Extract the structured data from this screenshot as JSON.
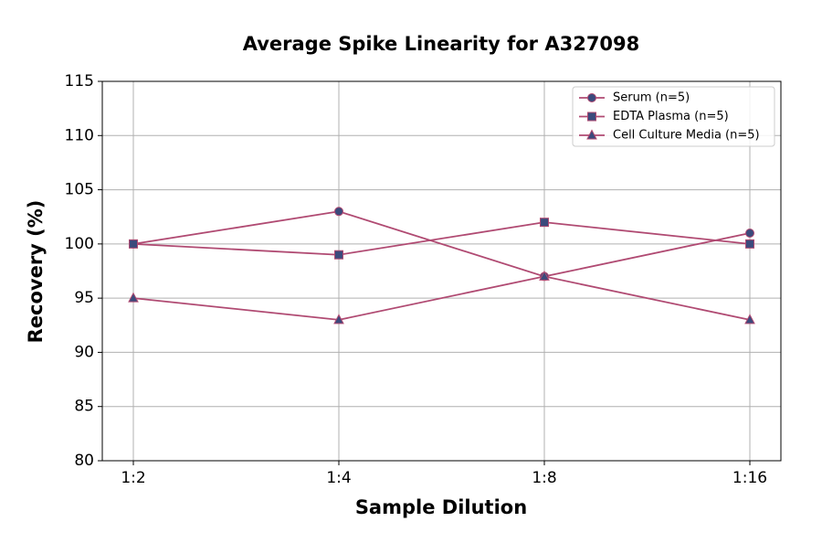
{
  "chart_data": {
    "type": "line",
    "title": "Average Spike Linearity for A327098",
    "x_label": "Sample Dilution",
    "y_label": "Recovery (%)",
    "categories": [
      "1:2",
      "1:4",
      "1:8",
      "1:16"
    ],
    "series": [
      {
        "name": "Serum (n=5)",
        "color": "#b04a72",
        "marker_color": "#3b4a7c",
        "marker": "circle",
        "values": [
          100,
          103,
          97,
          101
        ]
      },
      {
        "name": "EDTA Plasma (n=5)",
        "color": "#b04a72",
        "marker_color": "#3b4a7c",
        "marker": "square",
        "values": [
          100,
          99,
          102,
          100
        ]
      },
      {
        "name": "Cell Culture Media (n=5)",
        "color": "#b04a72",
        "marker_color": "#3b4a7c",
        "marker": "triangle",
        "values": [
          95,
          93,
          97,
          93
        ]
      }
    ],
    "ylim": [
      80,
      115
    ],
    "yticks": [
      80,
      85,
      90,
      95,
      100,
      105,
      110,
      115
    ],
    "grid": true,
    "legend": "upper right"
  }
}
